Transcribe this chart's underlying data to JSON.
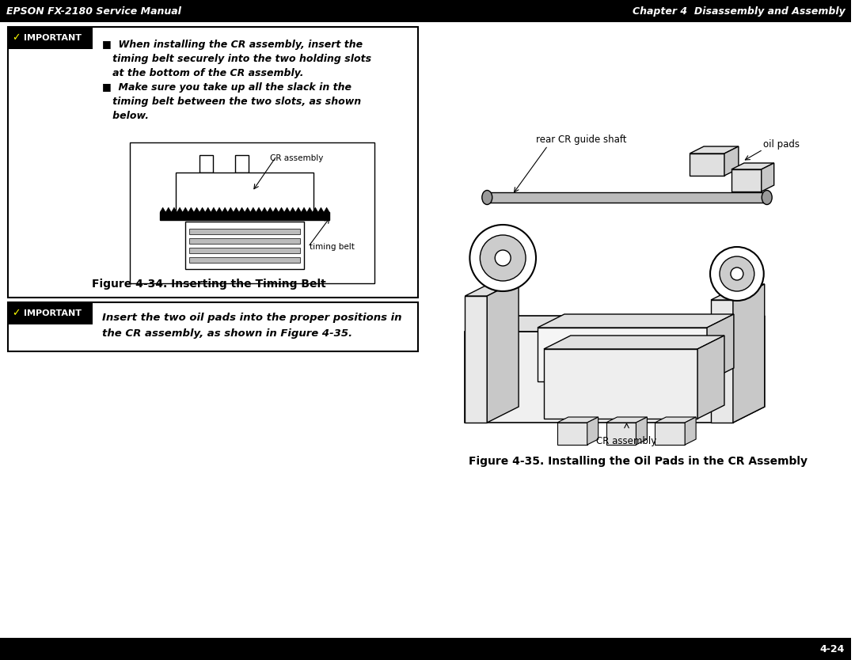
{
  "header_bg": "#000000",
  "header_text_color": "#ffffff",
  "header_left": "EPSON FX-2180 Service Manual",
  "header_right": "Chapter 4  Disassembly and Assembly",
  "footer_bg": "#000000",
  "footer_text_color": "#ffffff",
  "footer_text": "4-24",
  "page_bg": "#ffffff",
  "important_bg": "#000000",
  "important_text_color": "#ffffff",
  "body_text1_lines": [
    "■  When installing the CR assembly, insert the",
    "   timing belt securely into the two holding slots",
    "   at the bottom of the CR assembly.",
    "■  Make sure you take up all the slack in the",
    "   timing belt between the two slots, as shown",
    "   below."
  ],
  "fig_caption1": "Figure 4-34. Inserting the Timing Belt",
  "fig_label_cr_assembly": "CR assembly",
  "fig_label_timing_belt": "timing belt",
  "body_text2_lines": [
    "Insert the two oil pads into the proper positions in",
    "the CR assembly, as shown in Figure 4-35."
  ],
  "right_labels": {
    "rear_cr": "rear CR guide shaft",
    "oil_pads": "oil pads",
    "cr_assembly": "CR assembly"
  },
  "fig_caption2": "Figure 4-35. Installing the Oil Pads in the CR Assembly"
}
